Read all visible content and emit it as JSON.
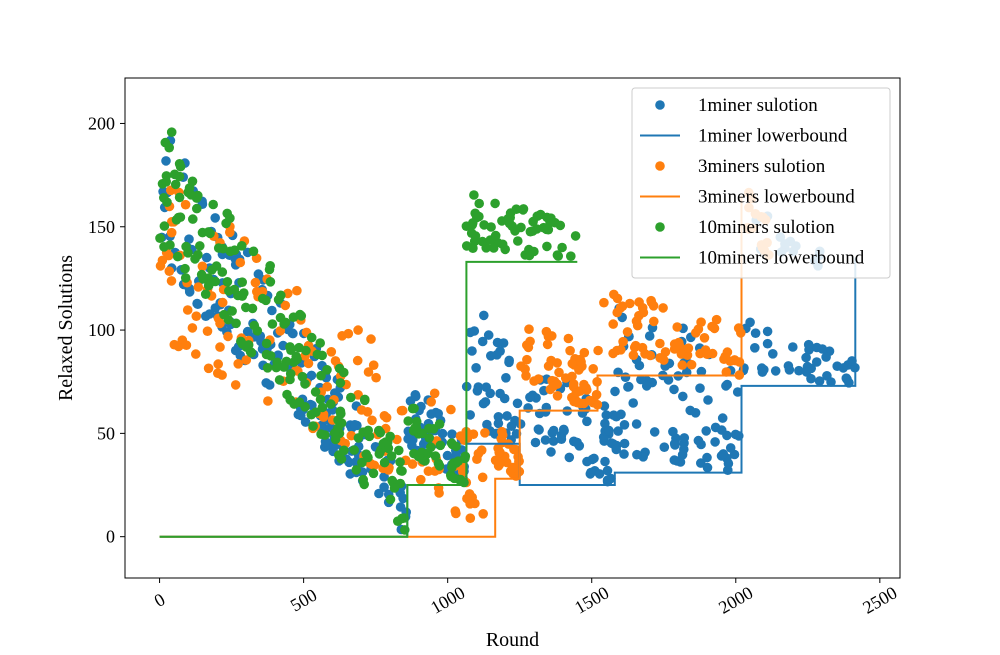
{
  "chart_data": {
    "type": "scatter",
    "title": "",
    "xlabel": "Round",
    "ylabel": "Relaxed Solutions",
    "xlim": [
      -120,
      2570
    ],
    "ylim": [
      -20,
      222
    ],
    "x_ticks": [
      0,
      500,
      1000,
      1500,
      2000,
      2500
    ],
    "x_tick_labels": [
      "0",
      "500",
      "1000",
      "1500",
      "2000",
      "2500"
    ],
    "x_tick_rotation": -30,
    "y_ticks": [
      0,
      50,
      100,
      150,
      200
    ],
    "y_tick_labels": [
      "0",
      "50",
      "100",
      "150",
      "200"
    ],
    "grid": false,
    "legend_position": "top-right",
    "legend": [
      {
        "label": "1miner sulotion",
        "kind": "marker",
        "color": "#1f77b4"
      },
      {
        "label": "1miner lowerbound",
        "kind": "line",
        "color": "#1f77b4"
      },
      {
        "label": "3miners sulotion",
        "kind": "marker",
        "color": "#ff7f0e"
      },
      {
        "label": "3miners lowerbound",
        "kind": "line",
        "color": "#ff7f0e"
      },
      {
        "label": "10miners sulotion",
        "kind": "marker",
        "color": "#2ca02c"
      },
      {
        "label": "10miners lowerbound",
        "kind": "line",
        "color": "#2ca02c"
      }
    ],
    "lowerbounds": [
      {
        "name": "1miner lowerbound",
        "color": "#1f77b4",
        "steps": [
          [
            0,
            0
          ],
          [
            860,
            0
          ],
          [
            860,
            25
          ],
          [
            1065,
            25
          ],
          [
            1065,
            45
          ],
          [
            1250,
            45
          ],
          [
            1250,
            25
          ],
          [
            1580,
            25
          ],
          [
            1580,
            31
          ],
          [
            2020,
            31
          ],
          [
            2020,
            73
          ],
          [
            2415,
            73
          ],
          [
            2415,
            135
          ]
        ]
      },
      {
        "name": "3miners lowerbound",
        "color": "#ff7f0e",
        "steps": [
          [
            0,
            0
          ],
          [
            1165,
            0
          ],
          [
            1165,
            28
          ],
          [
            1250,
            28
          ],
          [
            1250,
            61
          ],
          [
            1520,
            61
          ],
          [
            1520,
            78
          ],
          [
            2020,
            78
          ],
          [
            2020,
            165
          ]
        ]
      },
      {
        "name": "10miners lowerbound",
        "color": "#2ca02c",
        "steps": [
          [
            0,
            0
          ],
          [
            860,
            0
          ],
          [
            860,
            25
          ],
          [
            1065,
            25
          ],
          [
            1065,
            133
          ],
          [
            1450,
            133
          ]
        ]
      }
    ],
    "series": [
      {
        "name": "1miner sulotion",
        "color": "#1f77b4",
        "segments": [
          {
            "n": 180,
            "x": [
              0,
              860
            ],
            "y_top": [
              200,
              28
            ],
            "y_bottom": [
              130,
              0
            ]
          },
          {
            "n": 50,
            "x": [
              860,
              1065
            ],
            "y_top": [
              80,
              45
            ],
            "y_bottom": [
              45,
              25
            ]
          },
          {
            "n": 40,
            "x": [
              1065,
              1250
            ],
            "y_top": [
              118,
              90
            ],
            "y_bottom": [
              55,
              45
            ]
          },
          {
            "n": 60,
            "x": [
              1250,
              1580
            ],
            "y_top": [
              90,
              60
            ],
            "y_bottom": [
              45,
              25
            ]
          },
          {
            "n": 90,
            "x": [
              1580,
              2020
            ],
            "y_top": [
              120,
              90
            ],
            "y_bottom": [
              40,
              31
            ]
          },
          {
            "n": 40,
            "x": [
              2020,
              2415
            ],
            "y_top": [
              110,
              85
            ],
            "y_bottom": [
              80,
              73
            ]
          },
          {
            "n": 15,
            "x": [
              2060,
              2300
            ],
            "y_top": [
              160,
              140
            ],
            "y_bottom": [
              140,
              130
            ]
          }
        ]
      },
      {
        "name": "3miners sulotion",
        "color": "#ff7f0e",
        "segments": [
          {
            "n": 160,
            "x": [
              0,
              1165
            ],
            "y_top": [
              180,
              50
            ],
            "y_bottom": [
              95,
              0
            ]
          },
          {
            "n": 25,
            "x": [
              1165,
              1250
            ],
            "y_top": [
              55,
              40
            ],
            "y_bottom": [
              35,
              28
            ]
          },
          {
            "n": 55,
            "x": [
              1250,
              1520
            ],
            "y_top": [
              110,
              90
            ],
            "y_bottom": [
              75,
              61
            ]
          },
          {
            "n": 70,
            "x": [
              1520,
              2020
            ],
            "y_top": [
              125,
              105
            ],
            "y_bottom": [
              90,
              78
            ]
          },
          {
            "n": 15,
            "x": [
              2030,
              2120
            ],
            "y_top": [
              170,
              150
            ],
            "y_bottom": [
              150,
              135
            ]
          }
        ]
      },
      {
        "name": "10miners sulotion",
        "color": "#2ca02c",
        "segments": [
          {
            "n": 190,
            "x": [
              0,
              860
            ],
            "y_top": [
              205,
              40
            ],
            "y_bottom": [
              140,
              0
            ]
          },
          {
            "n": 40,
            "x": [
              860,
              1065
            ],
            "y_top": [
              70,
              42
            ],
            "y_bottom": [
              40,
              25
            ]
          },
          {
            "n": 60,
            "x": [
              1065,
              1450
            ],
            "y_top": [
              168,
              150
            ],
            "y_bottom": [
              140,
              133
            ]
          }
        ]
      }
    ]
  }
}
